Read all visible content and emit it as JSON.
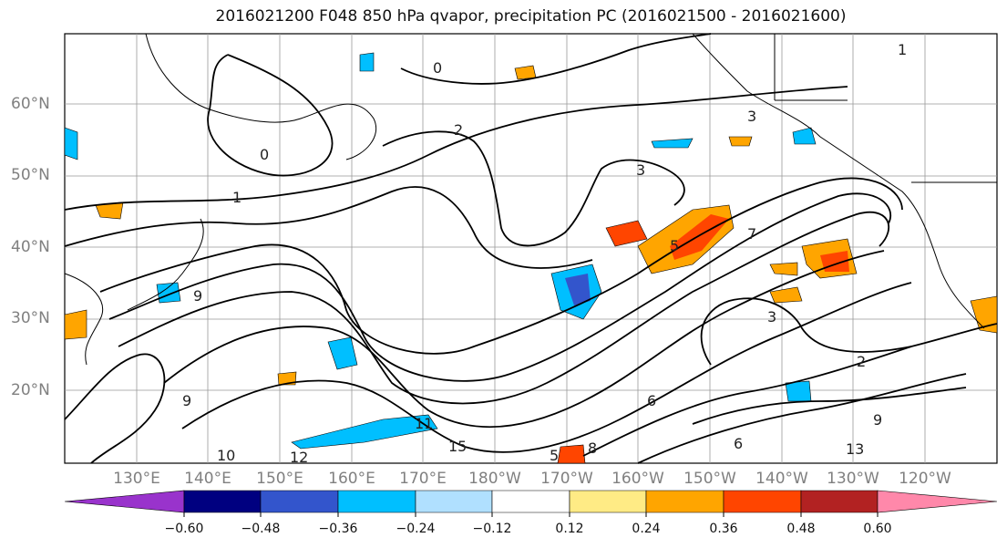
{
  "title": "2016021200 F048 850 hPa qvapor, precipitation PC (2016021500 - 2016021600)",
  "map": {
    "lat_labels": [
      "60°N",
      "50°N",
      "40°N",
      "30°N",
      "20°N"
    ],
    "lon_labels": [
      "130°E",
      "140°E",
      "150°E",
      "160°E",
      "170°E",
      "180°W",
      "170°W",
      "160°W",
      "150°W",
      "140°W",
      "130°W",
      "120°W"
    ],
    "contour_labels": [
      "0",
      "0",
      "1",
      "1",
      "2",
      "2",
      "3",
      "3",
      "3",
      "5",
      "6",
      "6",
      "7",
      "8",
      "9",
      "9",
      "9",
      "10",
      "11",
      "12",
      "13",
      "15",
      "5"
    ]
  },
  "colorbar": {
    "colors": [
      "#9933cc",
      "#000080",
      "#3355cc",
      "#00bfff",
      "#b0e0ff",
      "#ffffff",
      "#ffeb85",
      "#ffa500",
      "#ff4500",
      "#b22222",
      "#ff88aa"
    ],
    "ticks": [
      "−0.60",
      "−0.48",
      "−0.36",
      "−0.24",
      "−0.12",
      "0.12",
      "0.24",
      "0.36",
      "0.48",
      "0.60"
    ]
  }
}
